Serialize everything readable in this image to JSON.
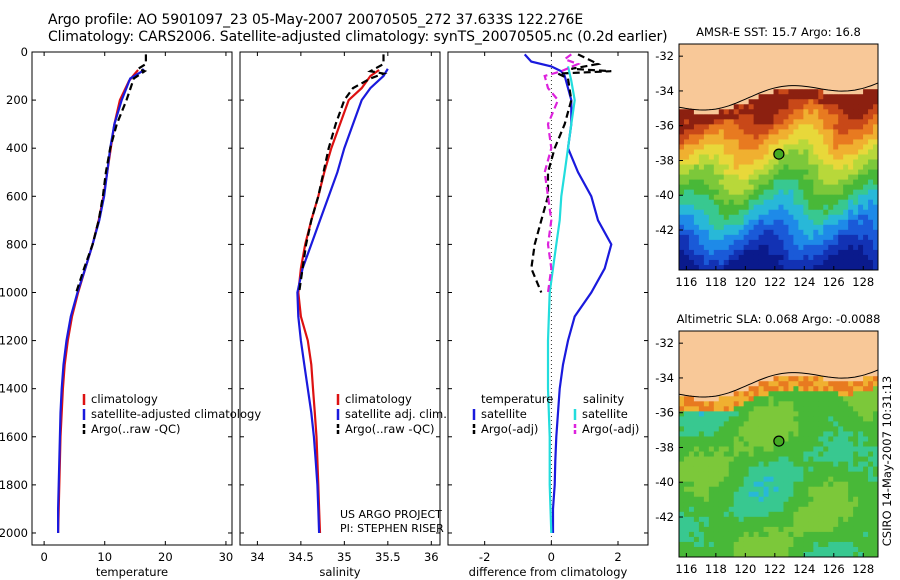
{
  "header": {
    "line1": "Argo profile: AO 5901097_23 05-May-2007 20070505_272 37.633S 122.276E",
    "line2": "Climatology: CARS2006. Satellite-adjusted climatology: synTS_20070505.nc (0.2d earlier)"
  },
  "credit": "CSIRO 14-May-2007 10:31:13",
  "colors": {
    "red": "#dd1111",
    "blue": "#1a1add",
    "black": "#000000",
    "cyan": "#22dddd",
    "magenta": "#dd22dd",
    "land": "#f8c898"
  },
  "chart_data": [
    {
      "type": "line",
      "xlabel": "temperature",
      "xticks": [
        0,
        10,
        20,
        30
      ],
      "xlim": [
        -2,
        31
      ],
      "ylim": [
        0,
        2050
      ],
      "yticks": [
        0,
        200,
        400,
        600,
        800,
        1000,
        1200,
        1400,
        1600,
        1800,
        2000
      ],
      "legend": [
        "climatology",
        "satellite-adjusted climatology",
        "Argo(..raw -QC)"
      ],
      "series": [
        {
          "name": "climatology",
          "color": "red",
          "style": "solid",
          "points": [
            [
              15.5,
              75
            ],
            [
              15.0,
              90
            ],
            [
              14.0,
              120
            ],
            [
              12.5,
              200
            ],
            [
              11.6,
              300
            ],
            [
              11.0,
              400
            ],
            [
              10.4,
              500
            ],
            [
              9.8,
              600
            ],
            [
              9.0,
              700
            ],
            [
              8.0,
              800
            ],
            [
              6.8,
              900
            ],
            [
              5.6,
              1000
            ],
            [
              4.6,
              1100
            ],
            [
              3.9,
              1200
            ],
            [
              3.4,
              1300
            ],
            [
              3.1,
              1400
            ],
            [
              2.9,
              1500
            ],
            [
              2.7,
              1600
            ],
            [
              2.6,
              1700
            ],
            [
              2.5,
              1800
            ],
            [
              2.4,
              1900
            ],
            [
              2.3,
              2000
            ]
          ]
        },
        {
          "name": "satellite-adjusted climatology",
          "color": "blue",
          "style": "solid",
          "points": [
            [
              16.4,
              70
            ],
            [
              16.2,
              80
            ],
            [
              14.2,
              110
            ],
            [
              12.8,
              200
            ],
            [
              11.6,
              300
            ],
            [
              10.9,
              400
            ],
            [
              10.4,
              500
            ],
            [
              9.9,
              600
            ],
            [
              9.1,
              700
            ],
            [
              8.0,
              800
            ],
            [
              6.8,
              900
            ],
            [
              5.5,
              1000
            ],
            [
              4.4,
              1100
            ],
            [
              3.7,
              1200
            ],
            [
              3.2,
              1300
            ],
            [
              2.9,
              1400
            ],
            [
              2.7,
              1500
            ],
            [
              2.6,
              1600
            ],
            [
              2.5,
              1700
            ],
            [
              2.4,
              1800
            ],
            [
              2.3,
              1900
            ],
            [
              2.3,
              2000
            ]
          ]
        },
        {
          "name": "Argo(..raw -QC)",
          "color": "black",
          "style": "dashed",
          "points": [
            [
              16.8,
              10
            ],
            [
              16.8,
              50
            ],
            [
              15.5,
              70
            ],
            [
              16.6,
              80
            ],
            [
              14.8,
              110
            ],
            [
              13.6,
              200
            ],
            [
              12.0,
              300
            ],
            [
              10.9,
              400
            ],
            [
              10.2,
              500
            ],
            [
              9.7,
              600
            ],
            [
              9.0,
              700
            ],
            [
              8.0,
              800
            ],
            [
              6.6,
              900
            ],
            [
              5.3,
              1000
            ]
          ]
        }
      ]
    },
    {
      "type": "line",
      "xlabel": "salinity",
      "xticks": [
        34,
        34.5,
        35,
        35.5,
        36
      ],
      "xticklabels": [
        "34",
        "34.5",
        "35",
        "35.5",
        "36"
      ],
      "xlim": [
        33.8,
        36.1
      ],
      "ylim": [
        0,
        2050
      ],
      "legend": [
        "climatology",
        "satellite adj. clim.",
        "Argo(..raw -QC)"
      ],
      "series": [
        {
          "name": "climatology",
          "color": "red",
          "style": "solid",
          "points": [
            [
              35.4,
              75
            ],
            [
              35.3,
              100
            ],
            [
              35.2,
              150
            ],
            [
              35.05,
              200
            ],
            [
              34.95,
              300
            ],
            [
              34.85,
              400
            ],
            [
              34.77,
              500
            ],
            [
              34.7,
              600
            ],
            [
              34.62,
              700
            ],
            [
              34.55,
              800
            ],
            [
              34.5,
              900
            ],
            [
              34.47,
              1000
            ],
            [
              34.5,
              1100
            ],
            [
              34.58,
              1200
            ],
            [
              34.62,
              1300
            ],
            [
              34.64,
              1400
            ],
            [
              34.66,
              1500
            ],
            [
              34.68,
              1600
            ],
            [
              34.69,
              1700
            ],
            [
              34.7,
              1800
            ],
            [
              34.71,
              1900
            ],
            [
              34.72,
              2000
            ]
          ]
        },
        {
          "name": "satellite adj. clim.",
          "color": "blue",
          "style": "solid",
          "points": [
            [
              35.5,
              70
            ],
            [
              35.45,
              100
            ],
            [
              35.3,
              150
            ],
            [
              35.2,
              200
            ],
            [
              35.1,
              300
            ],
            [
              35.0,
              400
            ],
            [
              34.92,
              500
            ],
            [
              34.82,
              600
            ],
            [
              34.72,
              700
            ],
            [
              34.62,
              800
            ],
            [
              34.52,
              900
            ],
            [
              34.46,
              1000
            ],
            [
              34.47,
              1100
            ],
            [
              34.5,
              1200
            ],
            [
              34.54,
              1300
            ],
            [
              34.58,
              1400
            ],
            [
              34.62,
              1500
            ],
            [
              34.65,
              1600
            ],
            [
              34.67,
              1700
            ],
            [
              34.69,
              1800
            ],
            [
              34.7,
              1900
            ],
            [
              34.71,
              2000
            ]
          ]
        },
        {
          "name": "Argo(..raw -QC)",
          "color": "black",
          "style": "dashed",
          "points": [
            [
              35.45,
              10
            ],
            [
              35.45,
              50
            ],
            [
              35.3,
              80
            ],
            [
              35.45,
              90
            ],
            [
              35.3,
              110
            ],
            [
              35.1,
              150
            ],
            [
              35.0,
              200
            ],
            [
              34.9,
              300
            ],
            [
              34.82,
              400
            ],
            [
              34.76,
              500
            ],
            [
              34.7,
              600
            ],
            [
              34.62,
              700
            ],
            [
              34.56,
              800
            ],
            [
              34.52,
              900
            ],
            [
              34.48,
              1000
            ]
          ]
        }
      ],
      "annotation": [
        "US ARGO PROJECT",
        "PI: STEPHEN RISER"
      ]
    },
    {
      "type": "line",
      "xlabel": "difference from climatology",
      "xticks": [
        -2,
        0,
        2
      ],
      "xlim": [
        -3.1,
        2.9
      ],
      "ylim": [
        0,
        2050
      ],
      "legend_headers": [
        "temperature",
        "salinity"
      ],
      "legend": [
        "satellite",
        "Argo(-adj)",
        "satellite",
        "Argo(-adj)"
      ],
      "series": [
        {
          "name": "temperature satellite",
          "color": "blue",
          "style": "solid",
          "points": [
            [
              -0.8,
              10
            ],
            [
              -0.6,
              40
            ],
            [
              0.0,
              60
            ],
            [
              0.3,
              80
            ],
            [
              0.4,
              100
            ],
            [
              0.6,
              200
            ],
            [
              0.6,
              300
            ],
            [
              0.5,
              400
            ],
            [
              0.8,
              500
            ],
            [
              1.2,
              600
            ],
            [
              1.4,
              700
            ],
            [
              1.8,
              800
            ],
            [
              1.6,
              900
            ],
            [
              1.2,
              1000
            ],
            [
              0.7,
              1100
            ],
            [
              0.5,
              1200
            ],
            [
              0.35,
              1300
            ],
            [
              0.25,
              1400
            ],
            [
              0.2,
              1500
            ],
            [
              0.15,
              1600
            ],
            [
              0.12,
              1700
            ],
            [
              0.1,
              1800
            ],
            [
              0.05,
              1900
            ],
            [
              0.05,
              2000
            ]
          ]
        },
        {
          "name": "temperature Argo(-adj)",
          "color": "black",
          "style": "dashed",
          "points": [
            [
              0.8,
              10
            ],
            [
              1.4,
              50
            ],
            [
              0.6,
              70
            ],
            [
              1.8,
              80
            ],
            [
              0.2,
              90
            ],
            [
              0.5,
              110
            ],
            [
              0.6,
              200
            ],
            [
              0.4,
              300
            ],
            [
              0.1,
              400
            ],
            [
              -0.1,
              500
            ],
            [
              -0.1,
              600
            ],
            [
              -0.3,
              700
            ],
            [
              -0.5,
              800
            ],
            [
              -0.6,
              900
            ],
            [
              -0.3,
              1000
            ]
          ]
        },
        {
          "name": "salinity satellite",
          "color": "cyan",
          "style": "solid",
          "points": [
            [
              0.5,
              60
            ],
            [
              0.6,
              120
            ],
            [
              0.7,
              200
            ],
            [
              0.6,
              300
            ],
            [
              0.5,
              400
            ],
            [
              0.4,
              500
            ],
            [
              0.3,
              600
            ],
            [
              0.25,
              700
            ],
            [
              0.15,
              800
            ],
            [
              0.05,
              900
            ],
            [
              -0.05,
              1000
            ],
            [
              -0.1,
              1200
            ],
            [
              -0.1,
              1400
            ],
            [
              -0.05,
              1600
            ],
            [
              -0.05,
              1800
            ],
            [
              0.0,
              2000
            ]
          ]
        },
        {
          "name": "salinity Argo(-adj)",
          "color": "magenta",
          "style": "dashed",
          "points": [
            [
              0.6,
              10
            ],
            [
              0.4,
              30
            ],
            [
              0.8,
              50
            ],
            [
              0.3,
              80
            ],
            [
              -0.2,
              100
            ],
            [
              -0.1,
              150
            ],
            [
              0.2,
              200
            ],
            [
              -0.1,
              300
            ],
            [
              0.0,
              400
            ],
            [
              -0.2,
              500
            ],
            [
              -0.1,
              600
            ],
            [
              0.0,
              700
            ],
            [
              -0.1,
              800
            ],
            [
              0.0,
              900
            ],
            [
              -0.1,
              1000
            ]
          ]
        }
      ]
    },
    {
      "type": "heatmap",
      "title": "AMSR-E SST: 15.7 Argo: 16.8",
      "xticks": [
        116,
        118,
        120,
        122,
        124,
        126,
        128
      ],
      "yticks": [
        -32,
        -34,
        -36,
        -38,
        -40,
        -42
      ],
      "xlim": [
        115.5,
        129
      ],
      "ylim": [
        -44.3,
        -31.3
      ],
      "marker": [
        122.276,
        -37.633
      ]
    },
    {
      "type": "heatmap",
      "title": "Altimetric SLA: 0.068 Argo: -0.0088",
      "xticks": [
        116,
        118,
        120,
        122,
        124,
        126,
        128
      ],
      "yticks": [
        -32,
        -34,
        -36,
        -38,
        -40,
        -42
      ],
      "xlim": [
        115.5,
        129
      ],
      "ylim": [
        -44.3,
        -31.3
      ],
      "marker": [
        122.276,
        -37.633
      ]
    }
  ]
}
